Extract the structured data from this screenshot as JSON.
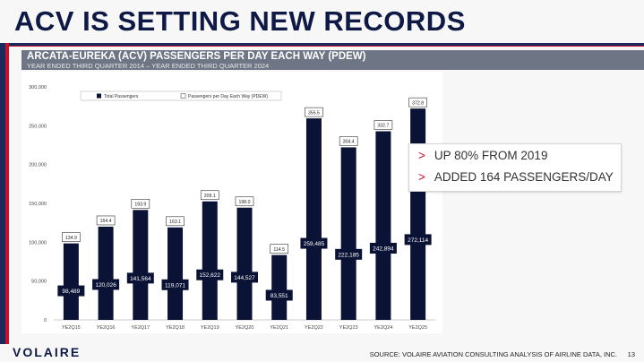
{
  "slide": {
    "title": "ACV IS SETTING NEW RECORDS",
    "banner_title": "ARCATA-EUREKA (ACV) PASSENGERS PER DAY EACH WAY (PDEW)",
    "banner_subtitle": "YEAR ENDED THIRD QUARTER 2014 – YEAR ENDED THIRD QUARTER 2024",
    "logo": "VOLAIRE",
    "source": "SOURCE: VOLAIRE AVIATION CONSULTING ANALYSIS OF AIRLINE DATA, INC.",
    "page": "13",
    "callout": [
      "UP 80% FROM 2019",
      "ADDED 164 PASSENGERS/DAY"
    ],
    "callout_marker": ">"
  },
  "colors": {
    "navy": "#0e1a45",
    "red": "#c8102e",
    "banner": "#6e7685"
  },
  "chart_data": {
    "type": "bar",
    "categories": [
      "YE2Q15",
      "YE2Q16",
      "YE2Q17",
      "YE2Q18",
      "YE2Q19",
      "YE2Q20",
      "YE2Q21",
      "YE2Q22",
      "YE2Q23",
      "YE2Q24",
      "YE2Q25"
    ],
    "series": [
      {
        "name": "Total Passengers",
        "values": [
          98489,
          120026,
          141564,
          119071,
          152622,
          144527,
          83551,
          259485,
          222185,
          242894,
          272114
        ],
        "labels": [
          "98,489",
          "120,026",
          "141,564",
          "119,071",
          "152,622",
          "144,527",
          "83,551",
          "259,485",
          "222,185",
          "242,894",
          "272,114"
        ]
      },
      {
        "name": "Passengers per Day Each Way (PDEW)",
        "values": [
          134.9,
          164.4,
          193.9,
          163.1,
          209.1,
          198.0,
          114.5,
          355.5,
          304.4,
          332.7,
          372.8
        ],
        "labels": [
          "134.9",
          "164.4",
          "193.9",
          "163.1",
          "209.1",
          "198.0",
          "114.5",
          "355.5",
          "304.4",
          "332.7",
          "372.8"
        ]
      }
    ],
    "yticks": [
      "0",
      "50,000",
      "100,000",
      "150,000",
      "200,000",
      "250,000",
      "300,000"
    ],
    "ylim": [
      0,
      300000
    ],
    "legend_position": "top-left",
    "grid": false
  }
}
